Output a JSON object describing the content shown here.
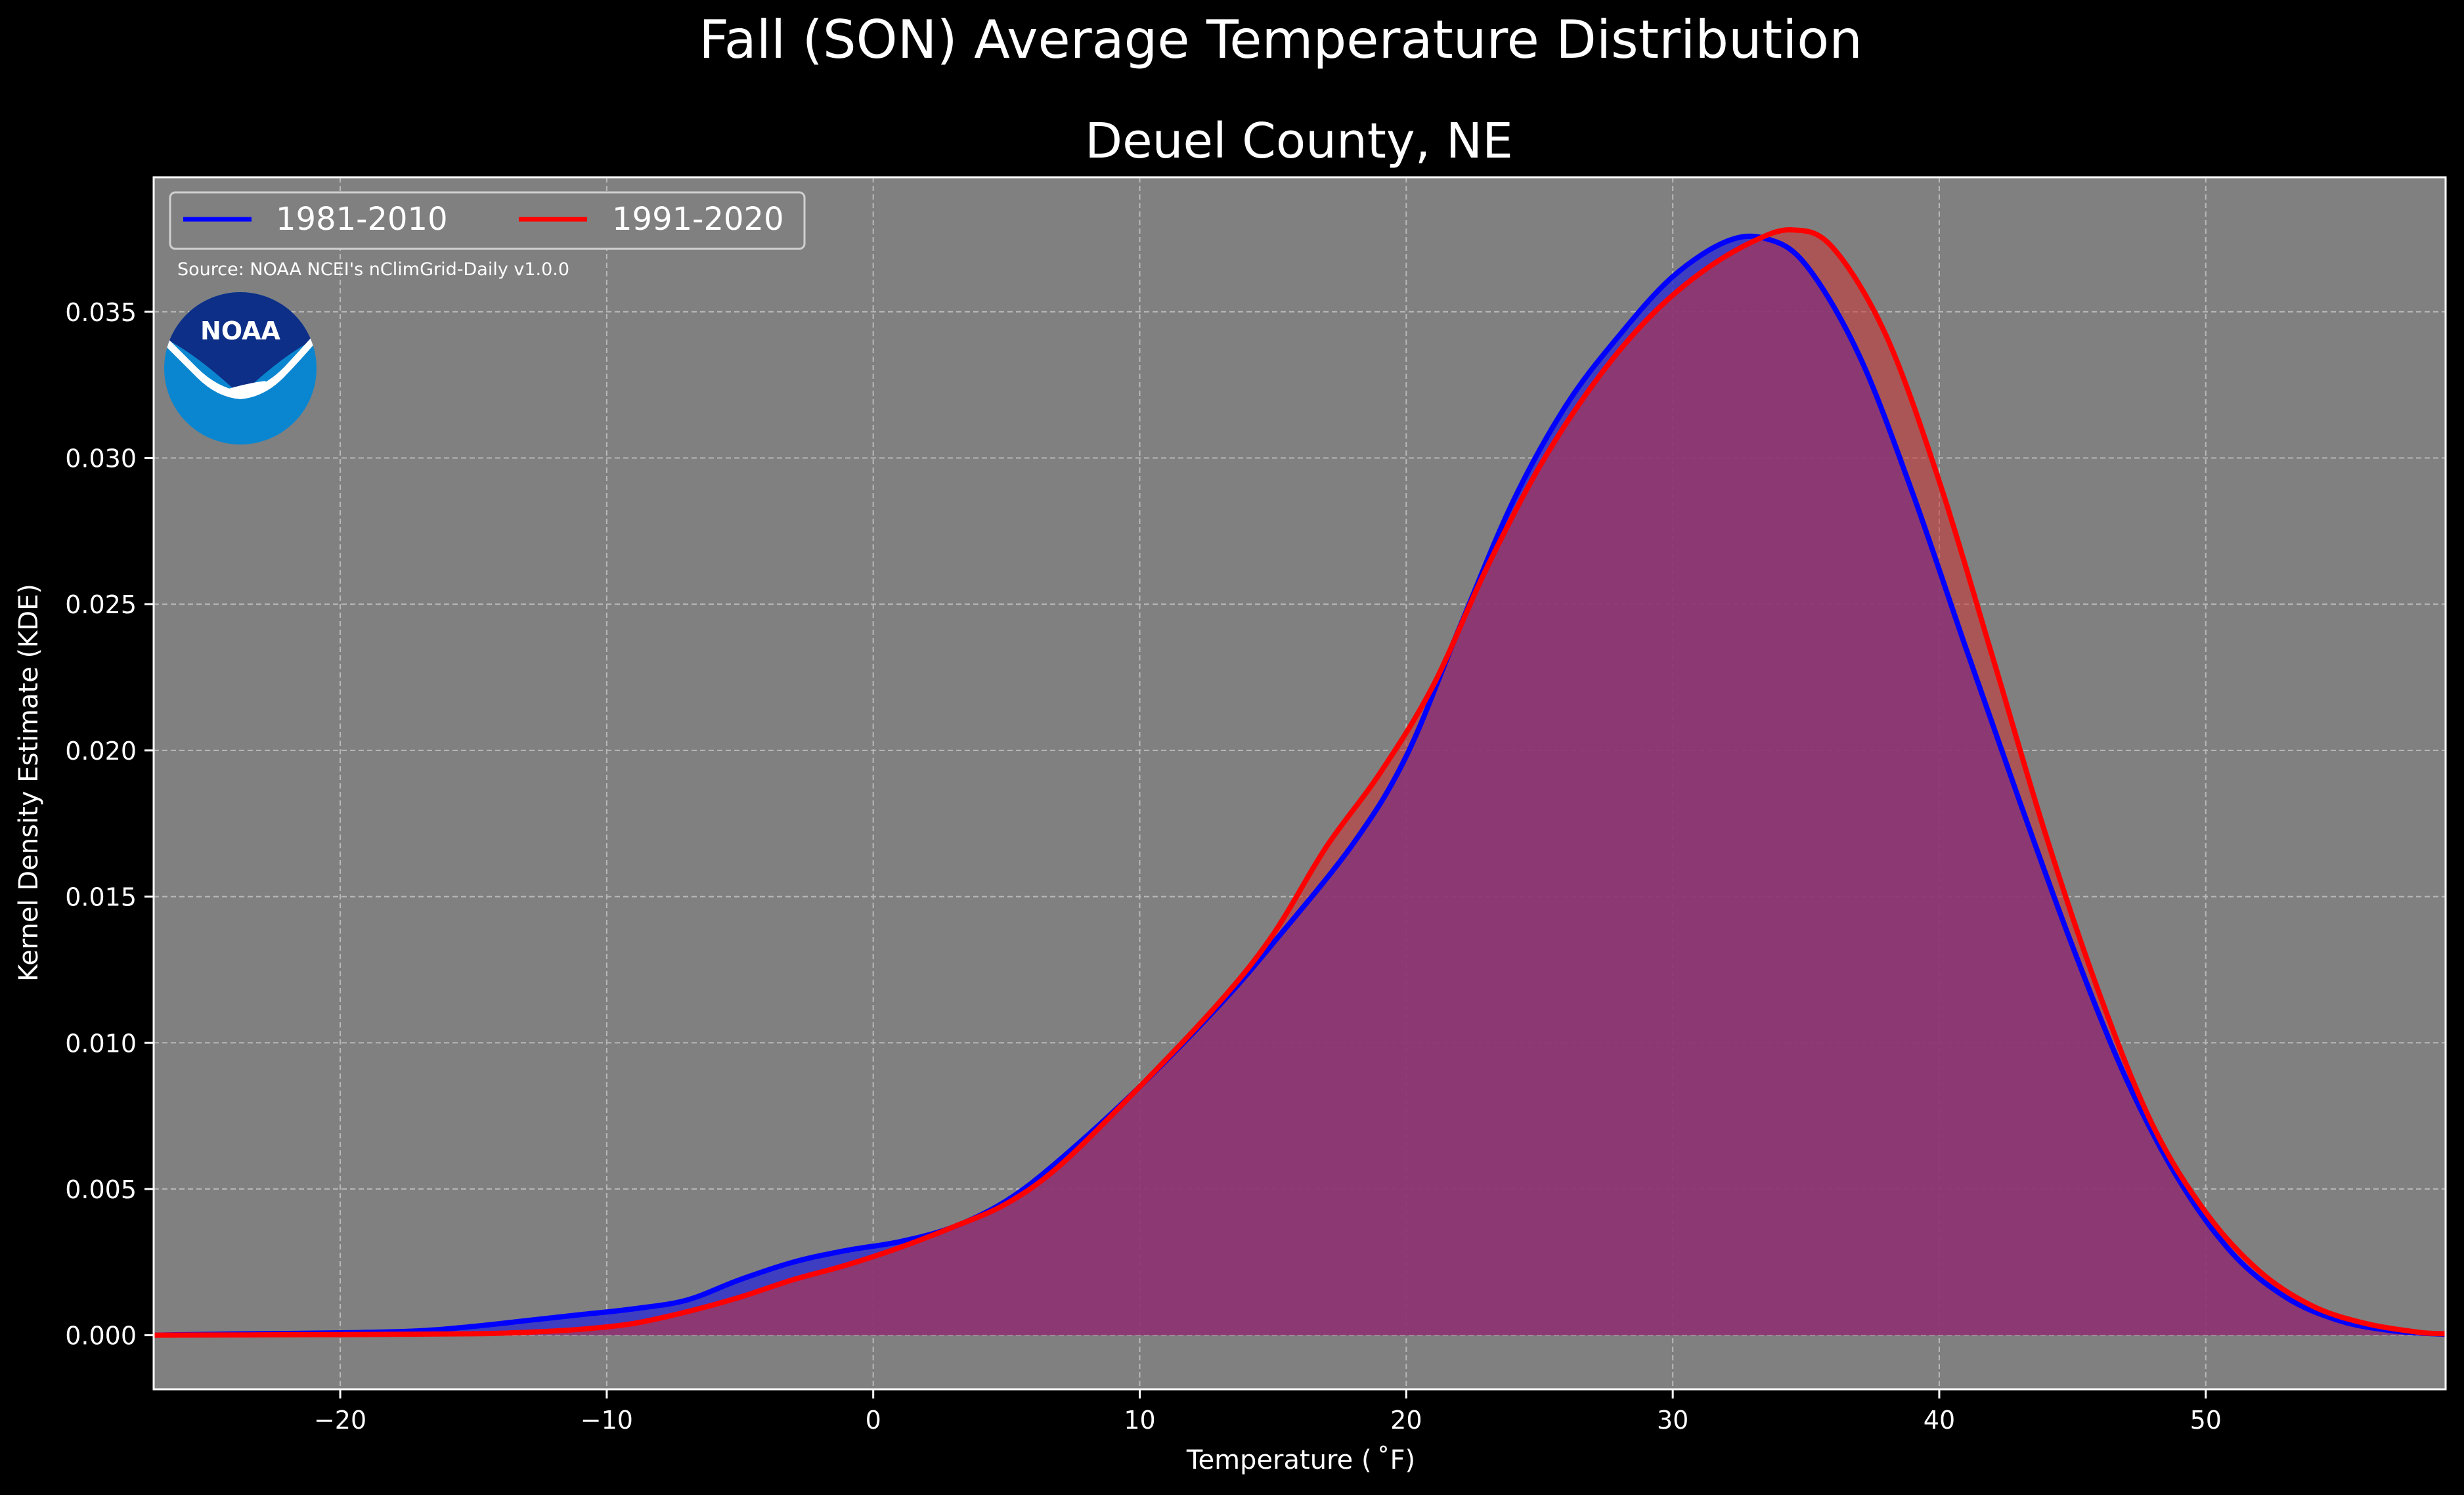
{
  "chart_data": {
    "type": "area",
    "suptitle": "Fall (SON) Average Temperature Distribution",
    "title": "Deuel County, NE",
    "xlabel": "Temperature ($^\\circ$F)",
    "xlabel_display": "Temperature ( ˚F)",
    "ylabel": "Kernel Density Estimate (KDE)",
    "xlim": [
      -27,
      59
    ],
    "ylim": [
      -0.00185,
      0.0396
    ],
    "x_ticks": [
      -20,
      -10,
      0,
      10,
      20,
      30,
      40,
      50
    ],
    "x_tick_labels": [
      "−20",
      "−10",
      "0",
      "10",
      "20",
      "30",
      "40",
      "50"
    ],
    "y_ticks": [
      0.0,
      0.005,
      0.01,
      0.015,
      0.02,
      0.025,
      0.03,
      0.035
    ],
    "y_tick_labels": [
      "0.000",
      "0.005",
      "0.010",
      "0.015",
      "0.020",
      "0.025",
      "0.030",
      "0.035"
    ],
    "grid": true,
    "legend_position": "top-left",
    "source_note": "Source: NOAA NCEI's nClimGrid-Daily v1.0.0",
    "logo_text": "NOAA",
    "series": [
      {
        "name": "1981-2010",
        "color": "#0000ff",
        "fill": "#3333cc",
        "points": [
          [
            -27,
            0.0
          ],
          [
            -24,
            4e-05
          ],
          [
            -20,
            8e-05
          ],
          [
            -17,
            0.00015
          ],
          [
            -15,
            0.0003
          ],
          [
            -13,
            0.0005
          ],
          [
            -11,
            0.0007
          ],
          [
            -9,
            0.0009
          ],
          [
            -7,
            0.0012
          ],
          [
            -5,
            0.0019
          ],
          [
            -3,
            0.0025
          ],
          [
            -1,
            0.0029
          ],
          [
            1,
            0.0032
          ],
          [
            3,
            0.0037
          ],
          [
            5,
            0.0046
          ],
          [
            7,
            0.006
          ],
          [
            10,
            0.0085
          ],
          [
            13,
            0.0113
          ],
          [
            15,
            0.0134
          ],
          [
            18,
            0.0168
          ],
          [
            20,
            0.0198
          ],
          [
            22,
            0.0242
          ],
          [
            24,
            0.0285
          ],
          [
            26,
            0.0318
          ],
          [
            28,
            0.0342
          ],
          [
            30,
            0.0362
          ],
          [
            32,
            0.0374
          ],
          [
            33.5,
            0.0375
          ],
          [
            35,
            0.0366
          ],
          [
            37,
            0.0335
          ],
          [
            39,
            0.0288
          ],
          [
            41,
            0.0235
          ],
          [
            43,
            0.0183
          ],
          [
            45,
            0.0133
          ],
          [
            47,
            0.0088
          ],
          [
            49,
            0.0053
          ],
          [
            51,
            0.0028
          ],
          [
            53,
            0.0013
          ],
          [
            55,
            0.0005
          ],
          [
            57,
            0.00015
          ],
          [
            59,
            3e-05
          ]
        ]
      },
      {
        "name": "1991-2020",
        "color": "#ff0000",
        "fill": "#cc3333",
        "points": [
          [
            -27,
            0.0
          ],
          [
            -20,
            2e-05
          ],
          [
            -15,
            5e-05
          ],
          [
            -13,
            0.0001
          ],
          [
            -11,
            0.0002
          ],
          [
            -9,
            0.0004
          ],
          [
            -7,
            0.0008
          ],
          [
            -5,
            0.0013
          ],
          [
            -3,
            0.0019
          ],
          [
            -1,
            0.0024
          ],
          [
            1,
            0.003
          ],
          [
            3,
            0.0037
          ],
          [
            5,
            0.0045
          ],
          [
            7,
            0.0058
          ],
          [
            10,
            0.0085
          ],
          [
            13,
            0.0114
          ],
          [
            15,
            0.0137
          ],
          [
            17,
            0.0167
          ],
          [
            19,
            0.0192
          ],
          [
            21,
            0.0222
          ],
          [
            23,
            0.0262
          ],
          [
            25,
            0.0297
          ],
          [
            27,
            0.0325
          ],
          [
            29,
            0.0347
          ],
          [
            31,
            0.0363
          ],
          [
            33,
            0.0374
          ],
          [
            34.5,
            0.0378
          ],
          [
            36,
            0.0372
          ],
          [
            38,
            0.0342
          ],
          [
            40,
            0.0292
          ],
          [
            42,
            0.0232
          ],
          [
            44,
            0.0171
          ],
          [
            46,
            0.0117
          ],
          [
            48,
            0.0072
          ],
          [
            50,
            0.0042
          ],
          [
            52,
            0.0022
          ],
          [
            54,
            0.001
          ],
          [
            56,
            0.0004
          ],
          [
            58,
            0.0001
          ],
          [
            59,
            5e-05
          ]
        ]
      }
    ]
  }
}
